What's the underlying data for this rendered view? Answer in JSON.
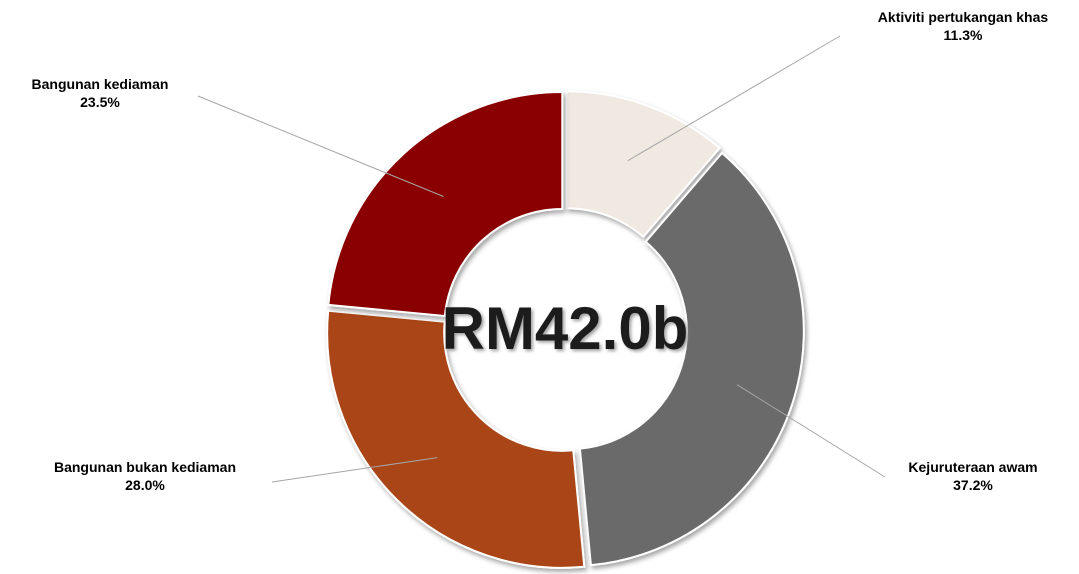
{
  "chart_data": {
    "type": "donut",
    "center_label": "RM42.0b",
    "categories": [
      "Aktiviti pertukangan khas",
      "Kejuruteraan awam",
      "Bangunan bukan kediaman",
      "Bangunan kediaman"
    ],
    "values": [
      11.3,
      37.2,
      28.0,
      23.5
    ],
    "value_labels": [
      "11.3%",
      "37.2%",
      "28.0%",
      "23.5%"
    ],
    "colors": [
      "#efe9e2",
      "#6a6a6a",
      "#a94515",
      "#8a0303"
    ]
  }
}
